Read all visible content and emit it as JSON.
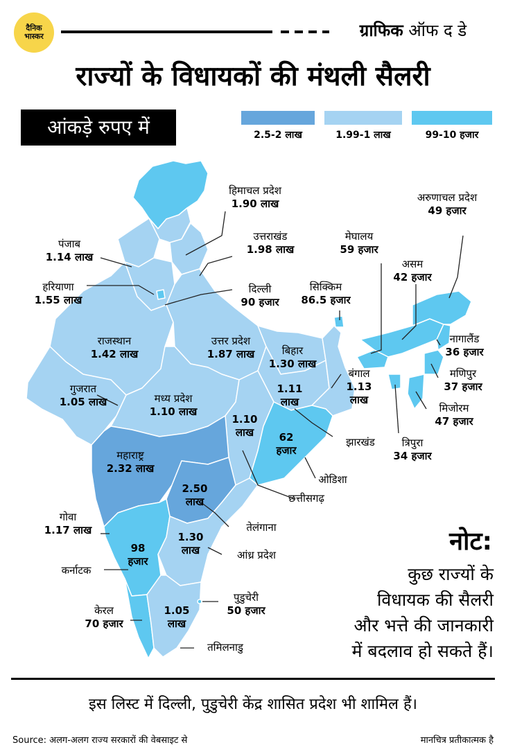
{
  "logo": {
    "line1": "दैनिक",
    "line2": "भास्कर"
  },
  "series": {
    "bold": "ग्राफिक",
    "rest": " ऑफ द डे"
  },
  "title": "राज्यों के विधायकों की मंथली सैलरी",
  "unit_note": "आंकड़े रुपए में",
  "legend": [
    {
      "label": "2.5-2 लाख",
      "color": "#66a6dc"
    },
    {
      "label": "1.99-1 लाख",
      "color": "#a5d3f2"
    },
    {
      "label": "99-10 हजार",
      "color": "#5ec8f0"
    }
  ],
  "states": [
    {
      "id": "himachal",
      "name": "हिमाचल प्रदेश",
      "value": "1.90 लाख"
    },
    {
      "id": "punjab",
      "name": "पंजाब",
      "value": "1.14 लाख"
    },
    {
      "id": "uttarakhand",
      "name": "उत्तराखंड",
      "value": "1.98 लाख"
    },
    {
      "id": "haryana",
      "name": "हरियाणा",
      "value": "1.55 लाख"
    },
    {
      "id": "delhi",
      "name": "दिल्ली",
      "value": "90 हजार"
    },
    {
      "id": "rajasthan",
      "name": "राजस्थान",
      "value": "1.42 लाख"
    },
    {
      "id": "up",
      "name": "उत्तर प्रदेश",
      "value": "1.87 लाख"
    },
    {
      "id": "bihar",
      "name": "बिहार",
      "value": "1.30 लाख"
    },
    {
      "id": "gujarat",
      "name": "गुजरात",
      "value": "1.05 लाख"
    },
    {
      "id": "mp",
      "name": "मध्य प्रदेश",
      "value": "1.10 लाख"
    },
    {
      "id": "jharkhand",
      "name": "झारखंड",
      "value": "1.11 लाख"
    },
    {
      "id": "bengal",
      "name": "बंगाल",
      "value": "1.13 लाख"
    },
    {
      "id": "chhattisgarh",
      "name": "छत्तीसगढ़",
      "value": "1.10 लाख"
    },
    {
      "id": "odisha",
      "name": "ओडिशा",
      "value": "62 हजार"
    },
    {
      "id": "maharashtra",
      "name": "महाराष्ट्र",
      "value": "2.32 लाख"
    },
    {
      "id": "telangana",
      "name": "तेलंगाना",
      "value": "2.50 लाख"
    },
    {
      "id": "goa",
      "name": "गोवा",
      "value": "1.17 लाख"
    },
    {
      "id": "karnataka",
      "name": "कर्नाटक",
      "value": "98 हजार"
    },
    {
      "id": "andhra",
      "name": "आंध्र प्रदेश",
      "value": "1.30 लाख"
    },
    {
      "id": "kerala",
      "name": "केरल",
      "value": "70 हजार"
    },
    {
      "id": "tamilnadu",
      "name": "तमिलनाडु",
      "value": "1.05 लाख"
    },
    {
      "id": "puducherry",
      "name": "पुडुचेरी",
      "value": "50 हजार"
    },
    {
      "id": "sikkim",
      "name": "सिक्किम",
      "value": "86.5 हजार"
    },
    {
      "id": "meghalaya",
      "name": "मेघालय",
      "value": "59 हजार"
    },
    {
      "id": "assam",
      "name": "असम",
      "value": "42 हजार"
    },
    {
      "id": "arunachal",
      "name": "अरुणाचल प्रदेश",
      "value": "49 हजार"
    },
    {
      "id": "nagaland",
      "name": "नागालैंड",
      "value": "36 हजार"
    },
    {
      "id": "manipur",
      "name": "मणिपुर",
      "value": "37 हजार"
    },
    {
      "id": "mizoram",
      "name": "मिजोरम",
      "value": "47 हजार"
    },
    {
      "id": "tripura",
      "name": "त्रिपुरा",
      "value": "34 हजार"
    }
  ],
  "note": {
    "heading": "नोट:",
    "lines": [
      "कुछ राज्यों के",
      "विधायक की सैलरी",
      "और भत्ते की जानकारी",
      "में बदलाव हो सकते हैं।"
    ]
  },
  "footer": "इस लिस्ट में दिल्ली, पुडुचेरी केंद्र शासित प्रदेश भी शामिल हैं।",
  "source": "Source: अलग-अलग राज्य सरकारों की वेबसाइट से",
  "disclaimer": "मानचित्र प्रतीकात्मक है"
}
